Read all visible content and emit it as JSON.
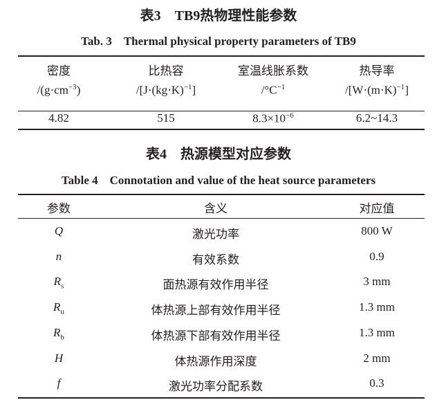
{
  "table3": {
    "title_cn": "表3　TB9热物理性能参数",
    "title_en": "Tab. 3　Thermal physical property parameters of TB9",
    "headers": [
      {
        "name": "密度",
        "unit": "/(g·cm",
        "sup": "−3",
        "unit_end": ")"
      },
      {
        "name": "比热容",
        "unit": "/[J·(kg·K)",
        "sup": "−1",
        "unit_end": "]"
      },
      {
        "name": "室温线胀系数",
        "unit": "/°C",
        "sup": "−1",
        "unit_end": ""
      },
      {
        "name": "热导率",
        "unit": "/[W·(m·K)",
        "sup": "−1",
        "unit_end": "]"
      }
    ],
    "values": [
      {
        "base": "4.82",
        "sup": ""
      },
      {
        "base": "515",
        "sup": ""
      },
      {
        "base": "8.3×10",
        "sup": "−6"
      },
      {
        "base": "6.2~14.3",
        "sup": ""
      }
    ]
  },
  "table4": {
    "title_cn": "表4　热源模型对应参数",
    "title_en": "Table 4　Connotation and value of the heat source parameters",
    "headers": [
      "参数",
      "含义",
      "对应值"
    ],
    "rows": [
      {
        "symbol": "Q",
        "sub": "",
        "meaning": "激光功率",
        "value": "800 W"
      },
      {
        "symbol": "n",
        "sub": "",
        "meaning": "有效系数",
        "value": "0.9"
      },
      {
        "symbol": "R",
        "sub": "s",
        "meaning": "面热源有效作用半径",
        "value": "3 mm"
      },
      {
        "symbol": "R",
        "sub": "u",
        "meaning": "体热源上部有效作用半径",
        "value": "1.3 mm"
      },
      {
        "symbol": "R",
        "sub": "b",
        "meaning": "体热源下部有效作用半径",
        "value": "1.3 mm"
      },
      {
        "symbol": "H",
        "sub": "",
        "meaning": "体热源作用深度",
        "value": "2 mm"
      },
      {
        "symbol": "f",
        "sub": "",
        "meaning": "激光功率分配系数",
        "value": "0.3"
      }
    ]
  }
}
